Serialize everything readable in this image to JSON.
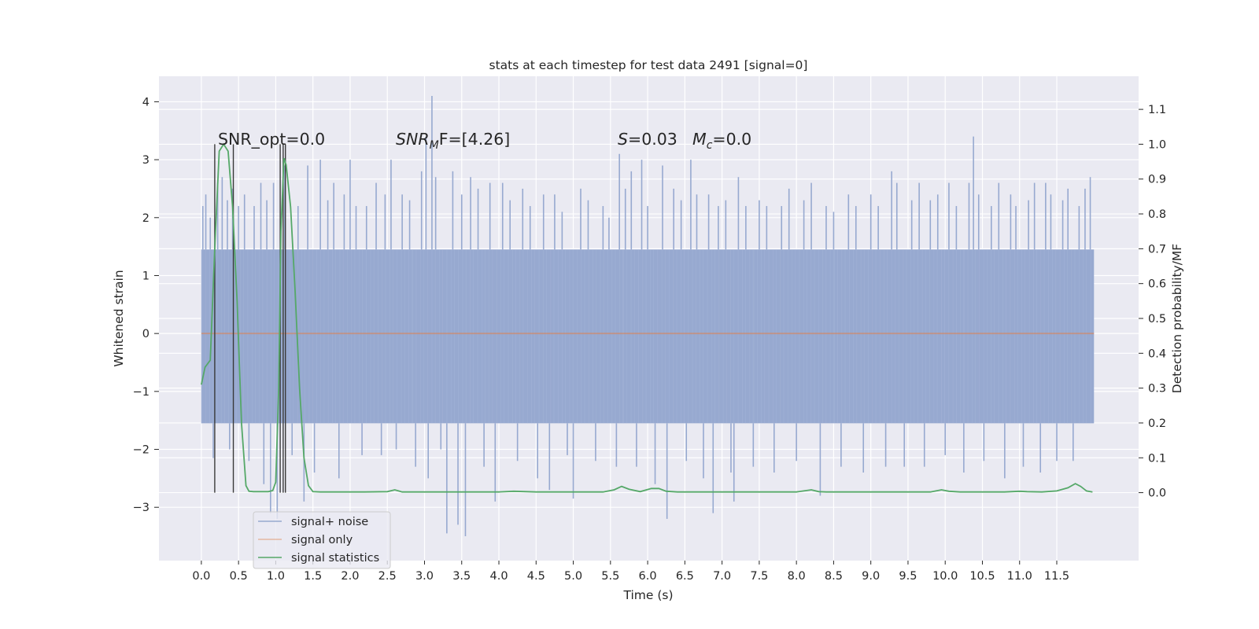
{
  "chart_data": {
    "type": "line",
    "title": "stats at each timestep for test data 2491 [signal=0]",
    "xlabel": "Time (s)",
    "ylabel": "Whitened strain",
    "ylabel_right": "Detection probability/MF",
    "xlim": [
      -0.57,
      12.6
    ],
    "ylim": [
      -3.92,
      4.44
    ],
    "ylim_right": [
      -0.195,
      1.195
    ],
    "x_ticks": [
      0.0,
      0.5,
      1.0,
      1.5,
      2.0,
      2.5,
      3.0,
      3.5,
      4.0,
      4.5,
      5.0,
      5.5,
      6.0,
      6.5,
      7.0,
      7.5,
      8.0,
      8.5,
      9.0,
      9.5,
      10.0,
      10.5,
      11.0,
      11.5
    ],
    "x_tick_labels": [
      "0.0",
      "0.5",
      "1.0",
      "1.5",
      "2.0",
      "2.5",
      "3.0",
      "3.5",
      "4.0",
      "4.5",
      "5.0",
      "5.5",
      "6.0",
      "6.5",
      "7.0",
      "7.5",
      "8.0",
      "8.5",
      "9.0",
      "9.5",
      "10.0",
      "10.5",
      "11.0",
      "11.5"
    ],
    "y_ticks": [
      -3,
      -2,
      -1,
      0,
      1,
      2,
      3,
      4
    ],
    "y_tick_labels": [
      "−3",
      "−2",
      "−1",
      "0",
      "1",
      "2",
      "3",
      "4"
    ],
    "y_ticks_right": [
      0.0,
      0.1,
      0.2,
      0.3,
      0.4,
      0.5,
      0.6,
      0.7,
      0.8,
      0.9,
      1.0,
      1.1
    ],
    "y_tick_labels_right": [
      "0.0",
      "0.1",
      "0.2",
      "0.3",
      "0.4",
      "0.5",
      "0.6",
      "0.7",
      "0.8",
      "0.9",
      "1.0",
      "1.1"
    ],
    "grid": true,
    "legend_position": "bottom-left",
    "annotations": {
      "snr_opt": "SNR_opt=0.0",
      "snr_mf_main": "SNR",
      "snr_mf_sub": "M",
      "snr_mf_rest": "F=[4.26]",
      "s_symbol": "S",
      "s_value": "=0.03",
      "mc_symbol": "M",
      "mc_sub": "c",
      "mc_value": "=0.0"
    },
    "series": [
      {
        "name": "signal+ noise",
        "color": "#97a9d0",
        "axis": "left",
        "x_range": [
          0.0,
          12.0
        ],
        "envelope_upper": 1.45,
        "envelope_lower": -1.55,
        "spikes": [
          {
            "x": 0.02,
            "y": 2.2
          },
          {
            "x": 0.06,
            "y": 2.4
          },
          {
            "x": 0.12,
            "y": 2.0
          },
          {
            "x": 0.16,
            "y": -2.15
          },
          {
            "x": 0.22,
            "y": 2.6
          },
          {
            "x": 0.28,
            "y": 2.7
          },
          {
            "x": 0.35,
            "y": 2.3
          },
          {
            "x": 0.38,
            "y": -2.0
          },
          {
            "x": 0.42,
            "y": 2.5
          },
          {
            "x": 0.5,
            "y": 2.2
          },
          {
            "x": 0.58,
            "y": 2.4
          },
          {
            "x": 0.64,
            "y": -2.2
          },
          {
            "x": 0.71,
            "y": 2.2
          },
          {
            "x": 0.8,
            "y": 2.6
          },
          {
            "x": 0.84,
            "y": -2.6
          },
          {
            "x": 0.88,
            "y": 2.3
          },
          {
            "x": 0.93,
            "y": -3.1
          },
          {
            "x": 0.97,
            "y": 2.6
          },
          {
            "x": 1.02,
            "y": -3.2
          },
          {
            "x": 1.12,
            "y": 2.9
          },
          {
            "x": 1.22,
            "y": -2.1
          },
          {
            "x": 1.3,
            "y": 2.2
          },
          {
            "x": 1.38,
            "y": -2.9
          },
          {
            "x": 1.43,
            "y": 2.9
          },
          {
            "x": 1.52,
            "y": -2.4
          },
          {
            "x": 1.6,
            "y": 3.0
          },
          {
            "x": 1.7,
            "y": 2.3
          },
          {
            "x": 1.78,
            "y": 2.6
          },
          {
            "x": 1.85,
            "y": -2.5
          },
          {
            "x": 1.92,
            "y": 2.4
          },
          {
            "x": 2.0,
            "y": 3.0
          },
          {
            "x": 2.08,
            "y": 2.2
          },
          {
            "x": 2.16,
            "y": -2.1
          },
          {
            "x": 2.22,
            "y": 2.2
          },
          {
            "x": 2.35,
            "y": 2.6
          },
          {
            "x": 2.42,
            "y": -2.1
          },
          {
            "x": 2.47,
            "y": 2.4
          },
          {
            "x": 2.55,
            "y": 3.0
          },
          {
            "x": 2.62,
            "y": -2.0
          },
          {
            "x": 2.7,
            "y": 2.4
          },
          {
            "x": 2.8,
            "y": 2.3
          },
          {
            "x": 2.88,
            "y": -2.3
          },
          {
            "x": 2.96,
            "y": 2.8
          },
          {
            "x": 3.02,
            "y": 3.4
          },
          {
            "x": 3.05,
            "y": -2.5
          },
          {
            "x": 3.1,
            "y": 4.1
          },
          {
            "x": 3.15,
            "y": 2.7
          },
          {
            "x": 3.22,
            "y": -2.0
          },
          {
            "x": 3.3,
            "y": -3.45
          },
          {
            "x": 3.38,
            "y": 2.8
          },
          {
            "x": 3.45,
            "y": -3.3
          },
          {
            "x": 3.5,
            "y": 2.4
          },
          {
            "x": 3.55,
            "y": -3.5
          },
          {
            "x": 3.62,
            "y": 2.7
          },
          {
            "x": 3.72,
            "y": 2.5
          },
          {
            "x": 3.8,
            "y": -2.3
          },
          {
            "x": 3.88,
            "y": 2.6
          },
          {
            "x": 3.95,
            "y": -2.9
          },
          {
            "x": 4.05,
            "y": 2.6
          },
          {
            "x": 4.15,
            "y": 2.3
          },
          {
            "x": 4.25,
            "y": -2.2
          },
          {
            "x": 4.32,
            "y": 2.5
          },
          {
            "x": 4.42,
            "y": 2.2
          },
          {
            "x": 4.52,
            "y": -2.5
          },
          {
            "x": 4.6,
            "y": 2.4
          },
          {
            "x": 4.68,
            "y": -2.7
          },
          {
            "x": 4.75,
            "y": 2.4
          },
          {
            "x": 4.85,
            "y": 2.1
          },
          {
            "x": 4.92,
            "y": -2.1
          },
          {
            "x": 5.0,
            "y": -2.85
          },
          {
            "x": 5.1,
            "y": 2.5
          },
          {
            "x": 5.2,
            "y": 2.3
          },
          {
            "x": 5.3,
            "y": -2.2
          },
          {
            "x": 5.4,
            "y": 2.2
          },
          {
            "x": 5.48,
            "y": 2.0
          },
          {
            "x": 5.58,
            "y": -2.3
          },
          {
            "x": 5.62,
            "y": 3.1
          },
          {
            "x": 5.7,
            "y": 2.5
          },
          {
            "x": 5.78,
            "y": 2.8
          },
          {
            "x": 5.85,
            "y": -2.3
          },
          {
            "x": 5.92,
            "y": 3.0
          },
          {
            "x": 6.0,
            "y": 2.2
          },
          {
            "x": 6.1,
            "y": -2.6
          },
          {
            "x": 6.2,
            "y": 2.9
          },
          {
            "x": 6.26,
            "y": -3.2
          },
          {
            "x": 6.35,
            "y": 2.5
          },
          {
            "x": 6.45,
            "y": 2.3
          },
          {
            "x": 6.52,
            "y": -2.2
          },
          {
            "x": 6.58,
            "y": 3.0
          },
          {
            "x": 6.66,
            "y": 2.4
          },
          {
            "x": 6.75,
            "y": -2.5
          },
          {
            "x": 6.82,
            "y": 2.4
          },
          {
            "x": 6.88,
            "y": -3.1
          },
          {
            "x": 6.95,
            "y": 2.2
          },
          {
            "x": 7.05,
            "y": 2.3
          },
          {
            "x": 7.12,
            "y": -2.4
          },
          {
            "x": 7.16,
            "y": -2.9
          },
          {
            "x": 7.22,
            "y": 2.7
          },
          {
            "x": 7.32,
            "y": 2.2
          },
          {
            "x": 7.42,
            "y": -2.3
          },
          {
            "x": 7.5,
            "y": 2.3
          },
          {
            "x": 7.6,
            "y": 2.2
          },
          {
            "x": 7.7,
            "y": -2.4
          },
          {
            "x": 7.8,
            "y": 2.2
          },
          {
            "x": 7.9,
            "y": 2.5
          },
          {
            "x": 8.0,
            "y": -2.2
          },
          {
            "x": 8.1,
            "y": 2.3
          },
          {
            "x": 8.2,
            "y": 2.6
          },
          {
            "x": 8.32,
            "y": -2.8
          },
          {
            "x": 8.4,
            "y": 2.2
          },
          {
            "x": 8.5,
            "y": 2.1
          },
          {
            "x": 8.6,
            "y": -2.3
          },
          {
            "x": 8.7,
            "y": 2.4
          },
          {
            "x": 8.8,
            "y": 2.2
          },
          {
            "x": 8.9,
            "y": -2.4
          },
          {
            "x": 9.0,
            "y": 2.4
          },
          {
            "x": 9.1,
            "y": 2.2
          },
          {
            "x": 9.2,
            "y": -2.3
          },
          {
            "x": 9.28,
            "y": 2.8
          },
          {
            "x": 9.35,
            "y": 2.6
          },
          {
            "x": 9.45,
            "y": -2.3
          },
          {
            "x": 9.55,
            "y": 2.3
          },
          {
            "x": 9.65,
            "y": 2.6
          },
          {
            "x": 9.72,
            "y": -2.3
          },
          {
            "x": 9.8,
            "y": 2.3
          },
          {
            "x": 9.9,
            "y": 2.4
          },
          {
            "x": 10.0,
            "y": -2.1
          },
          {
            "x": 10.05,
            "y": 2.6
          },
          {
            "x": 10.15,
            "y": 2.2
          },
          {
            "x": 10.25,
            "y": -2.4
          },
          {
            "x": 10.32,
            "y": 2.6
          },
          {
            "x": 10.38,
            "y": 3.4
          },
          {
            "x": 10.45,
            "y": 2.4
          },
          {
            "x": 10.52,
            "y": -2.2
          },
          {
            "x": 10.62,
            "y": 2.2
          },
          {
            "x": 10.72,
            "y": 2.6
          },
          {
            "x": 10.8,
            "y": -2.5
          },
          {
            "x": 10.88,
            "y": 2.4
          },
          {
            "x": 10.95,
            "y": 2.2
          },
          {
            "x": 11.05,
            "y": -2.3
          },
          {
            "x": 11.12,
            "y": 2.3
          },
          {
            "x": 11.2,
            "y": 2.6
          },
          {
            "x": 11.28,
            "y": -2.4
          },
          {
            "x": 11.35,
            "y": 2.6
          },
          {
            "x": 11.42,
            "y": 2.4
          },
          {
            "x": 11.5,
            "y": -2.2
          },
          {
            "x": 11.58,
            "y": 2.3
          },
          {
            "x": 11.65,
            "y": 2.5
          },
          {
            "x": 11.72,
            "y": -2.2
          },
          {
            "x": 11.8,
            "y": 2.2
          },
          {
            "x": 11.88,
            "y": 2.5
          },
          {
            "x": 11.95,
            "y": 2.7
          }
        ]
      },
      {
        "name": "signal only",
        "color": "#dd8452",
        "axis": "left",
        "x": [
          0.0,
          12.0
        ],
        "y": [
          0.0,
          0.0
        ]
      },
      {
        "name": "signal statistics",
        "color": "#55a868",
        "axis": "right",
        "x": [
          0.0,
          0.05,
          0.12,
          0.18,
          0.24,
          0.3,
          0.36,
          0.42,
          0.48,
          0.54,
          0.6,
          0.64,
          0.7,
          0.8,
          0.9,
          0.96,
          1.0,
          1.04,
          1.07,
          1.11,
          1.14,
          1.2,
          1.26,
          1.32,
          1.38,
          1.44,
          1.5,
          1.6,
          1.8,
          2.2,
          2.5,
          2.6,
          2.7,
          2.9,
          3.2,
          3.6,
          4.0,
          4.2,
          4.5,
          5.0,
          5.4,
          5.55,
          5.65,
          5.75,
          5.9,
          6.05,
          6.15,
          6.25,
          6.4,
          6.6,
          7.0,
          7.5,
          8.0,
          8.2,
          8.3,
          8.4,
          8.6,
          9.0,
          9.5,
          9.8,
          9.95,
          10.05,
          10.2,
          10.5,
          10.8,
          11.0,
          11.1,
          11.3,
          11.5,
          11.65,
          11.75,
          11.82,
          11.9,
          11.98
        ],
        "y": [
          0.31,
          0.36,
          0.38,
          0.7,
          0.98,
          1.0,
          0.98,
          0.82,
          0.55,
          0.2,
          0.02,
          0.004,
          0.003,
          0.003,
          0.003,
          0.006,
          0.03,
          0.3,
          0.75,
          0.96,
          0.94,
          0.82,
          0.58,
          0.3,
          0.1,
          0.02,
          0.003,
          0.002,
          0.002,
          0.002,
          0.003,
          0.008,
          0.002,
          0.002,
          0.002,
          0.002,
          0.002,
          0.004,
          0.002,
          0.002,
          0.002,
          0.008,
          0.018,
          0.01,
          0.003,
          0.012,
          0.012,
          0.004,
          0.002,
          0.002,
          0.002,
          0.002,
          0.002,
          0.008,
          0.003,
          0.002,
          0.002,
          0.002,
          0.002,
          0.002,
          0.008,
          0.004,
          0.002,
          0.002,
          0.002,
          0.004,
          0.003,
          0.002,
          0.005,
          0.014,
          0.026,
          0.018,
          0.005,
          0.002
        ]
      }
    ],
    "vlines": [
      {
        "x": 0.18,
        "y_from": -0.0,
        "y_to": 1.0
      },
      {
        "x": 0.43,
        "y_from": -0.0,
        "y_to": 1.0
      },
      {
        "x": 1.06,
        "y_from": -0.0,
        "y_to": 1.0
      },
      {
        "x": 1.1,
        "y_from": -0.0,
        "y_to": 1.0
      },
      {
        "x": 1.13,
        "y_from": -0.0,
        "y_to": 1.0
      }
    ]
  }
}
